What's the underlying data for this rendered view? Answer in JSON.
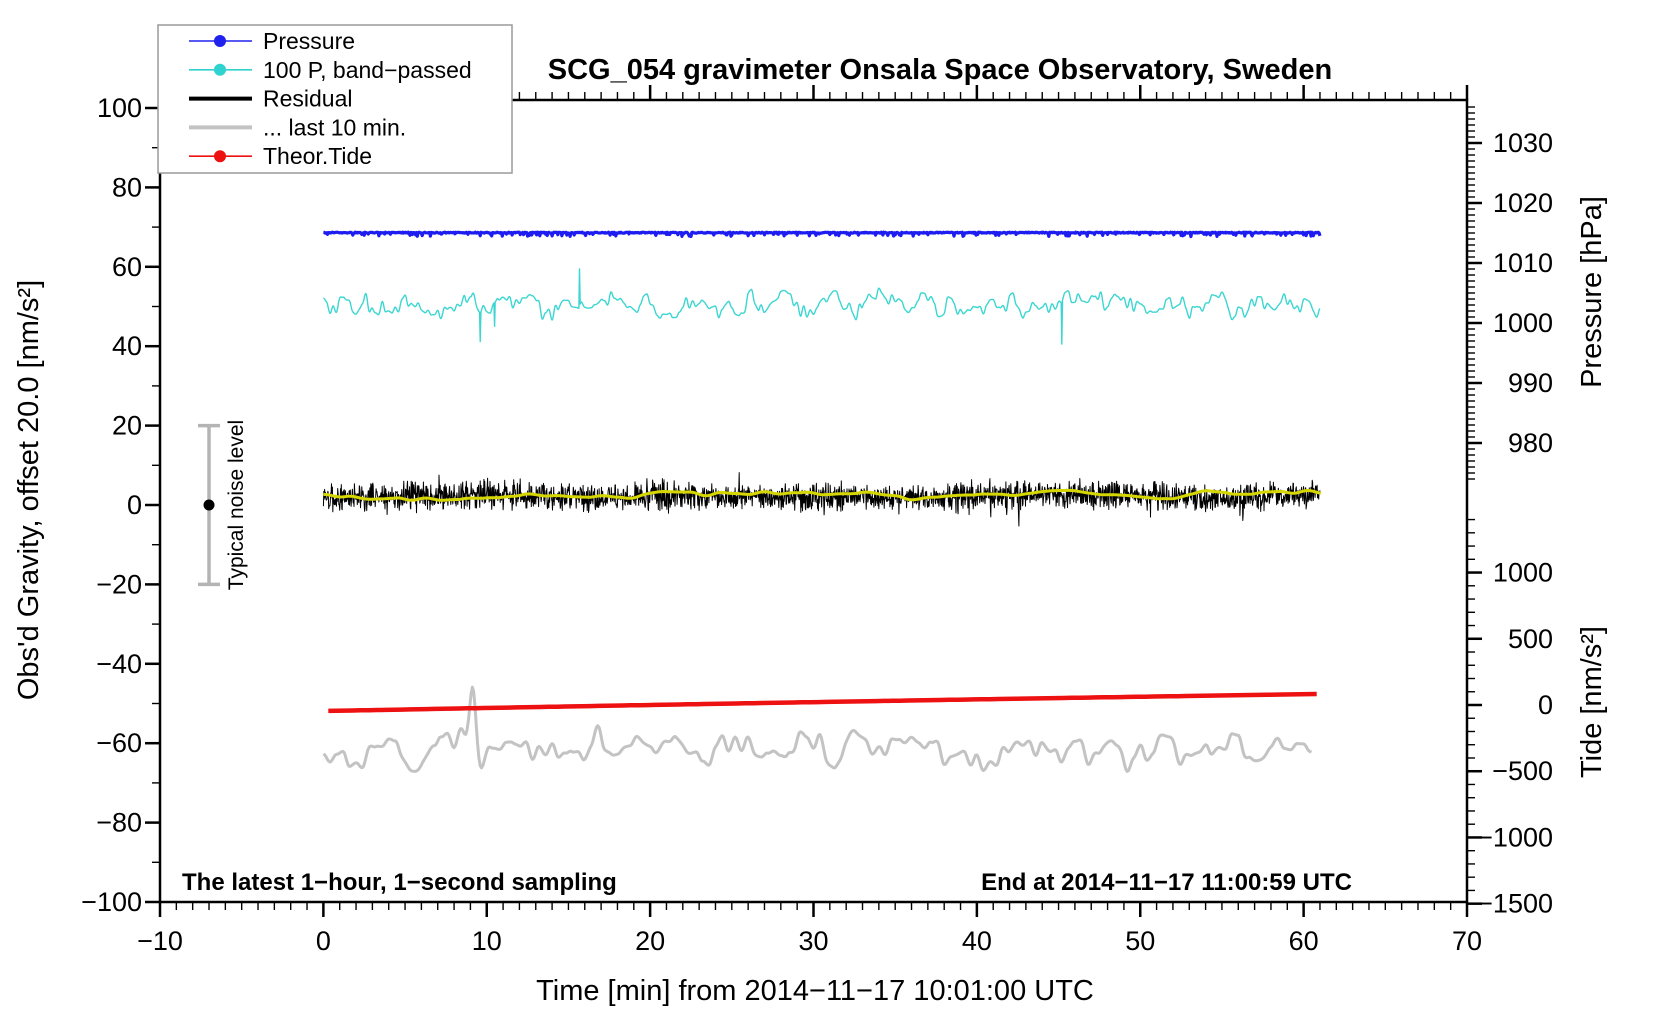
{
  "title": "SCG_054 gravimeter Onsala Space Observatory, Sweden",
  "annotations": {
    "sampling_note": "The latest 1−hour, 1−second sampling",
    "end_note": "End at 2014−11−17 11:00:59 UTC",
    "noise_label": "Typical noise level"
  },
  "axes": {
    "x": {
      "label": "Time [min] from 2014−11−17 10:01:00 UTC",
      "min": -10,
      "max": 70,
      "major_ticks": [
        -10,
        0,
        10,
        20,
        30,
        40,
        50,
        60,
        70
      ],
      "minor_step": 1
    },
    "y_left": {
      "label": "Obs'd Gravity, offset 20.0 [nm/s²]",
      "min": -100,
      "max": 100,
      "major_ticks": [
        100,
        80,
        60,
        40,
        20,
        0,
        -20,
        -40,
        -60,
        -80,
        -100
      ],
      "minor_step": 10
    },
    "pressure": {
      "label": "Pressure [hPa]",
      "major_ticks": [
        1030,
        1020,
        1010,
        1000,
        990,
        980
      ],
      "minor_step": 1
    },
    "tide": {
      "label": "Tide [nm/s²]",
      "major_ticks": [
        1000,
        500,
        0,
        -500,
        -1000,
        -1500
      ],
      "minor_step": 100
    }
  },
  "legend": {
    "items": [
      {
        "label": "Pressure",
        "color": "#2121ee",
        "marker": "dot-line"
      },
      {
        "label": "100 P, band−passed",
        "color": "#2fd2cf",
        "marker": "dot-line"
      },
      {
        "label": "Residual",
        "color": "#000000",
        "marker": "thick-line"
      },
      {
        "label": "... last 10 min.",
        "color": "#c3c3c3",
        "marker": "thick-line"
      },
      {
        "label": "Theor.Tide",
        "color": "#ee1111",
        "marker": "dot-line"
      }
    ]
  },
  "colors": {
    "pressure_line": "#1d1df2",
    "band_passed_line": "#3cd6d2",
    "residual_line": "#000000",
    "residual_smooth_line": "#d6d600",
    "last10min_line": "#c3c3c3",
    "tide_line": "#ee1111",
    "noise_bar": "#b4b4b4",
    "frame": "#000000"
  },
  "chart_data": {
    "type": "line",
    "title": "SCG_054 gravimeter Onsala Space Observatory, Sweden",
    "xlabel": "Time [min] from 2014−11−17 10:01:00 UTC",
    "x_range_minutes": [
      0,
      61
    ],
    "xlim": [
      -10,
      70
    ],
    "ylim_left_gravity": [
      -100,
      100
    ],
    "pressure_axis_ticks_hpa": [
      1030,
      1020,
      1010,
      1000,
      990,
      980
    ],
    "tide_axis_ticks": [
      1000,
      500,
      0,
      -500,
      -1000,
      -1500
    ],
    "series": [
      {
        "name": "Pressure",
        "axis": "pressure",
        "approx_value_hpa": 1015.2,
        "left_axis_equivalent": 68.6,
        "noise_amplitude": 0.4,
        "shape": "flat"
      },
      {
        "name": "100 P, band-passed",
        "axis": "left",
        "mean": 50.6,
        "typical_amplitude": 3.5,
        "spike_amplitude": 12,
        "shape": "band-noise"
      },
      {
        "name": "Residual",
        "axis": "left",
        "mean": 2.4,
        "typical_amplitude": 5,
        "spike_amplitude": 14,
        "shape": "dense-noise"
      },
      {
        "name": "Residual smoothed (yellow overlay)",
        "axis": "left",
        "mean": 2.4,
        "typical_amplitude": 1.3,
        "shape": "smooth"
      },
      {
        "name": "... last 10 min.",
        "axis": "left",
        "mean": -61.5,
        "typical_amplitude": 5,
        "spike": {
          "t_min": 9.2,
          "peak_value": -47.5
        },
        "shape": "smooth-oscillation"
      },
      {
        "name": "Theor.Tide",
        "axis": "left",
        "start_value": -51.9,
        "end_value": -47.6,
        "shape": "slow-trend"
      }
    ],
    "noise_errorbar": {
      "center_value": 0,
      "half_range": 20,
      "x_minutes": -7
    }
  }
}
